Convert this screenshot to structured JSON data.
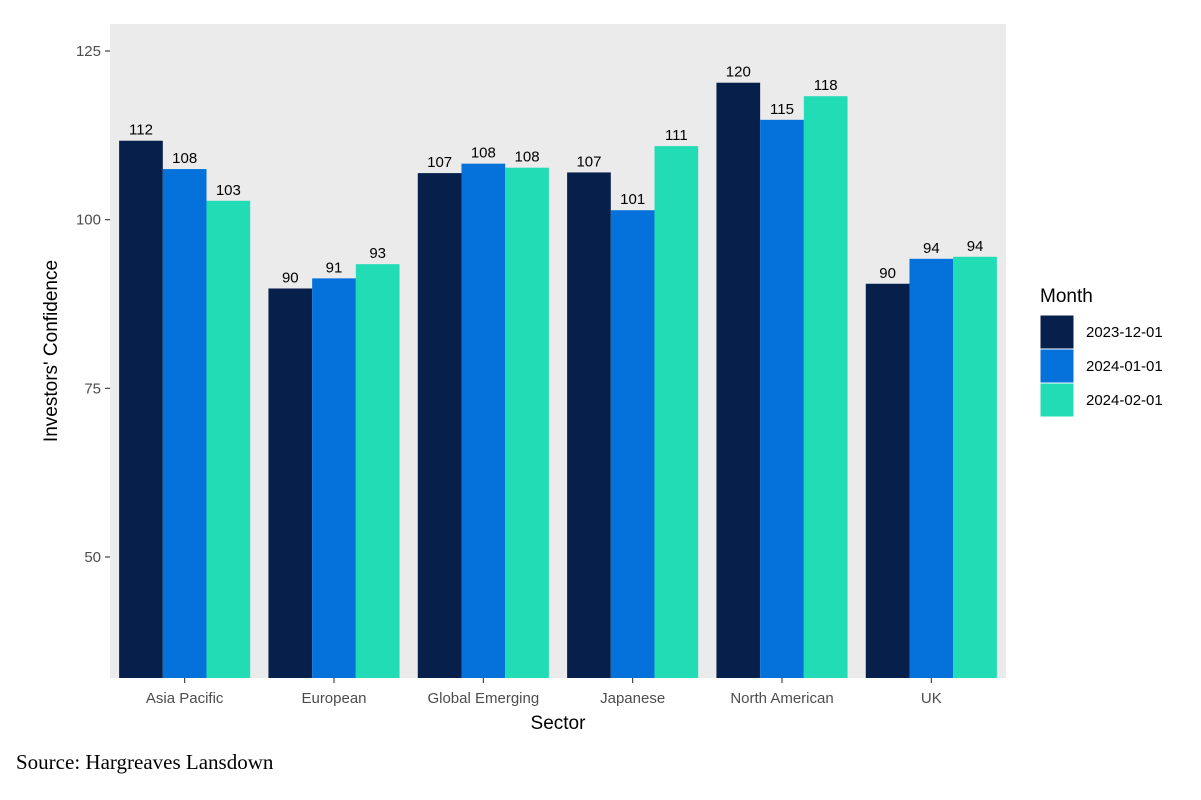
{
  "chart_data": {
    "type": "bar",
    "title": "",
    "xlabel": "Sector",
    "ylabel": "Investors' Confidence",
    "ylim": [
      32.5,
      125
    ],
    "yticks": [
      50,
      75,
      100,
      125
    ],
    "grid": false,
    "legend": {
      "title": "Month",
      "placement": "right"
    },
    "categories": [
      "Asia Pacific",
      "European",
      "Global Emerging",
      "Japanese",
      "North American",
      "UK"
    ],
    "series": [
      {
        "name": "2023-12-01",
        "color": "#071f4b",
        "values": [
          111.7,
          89.8,
          106.9,
          107.0,
          120.3,
          90.5
        ],
        "labels": [
          "112",
          "90",
          "107",
          "107",
          "120",
          "90"
        ]
      },
      {
        "name": "2024-01-01",
        "color": "#0572dc",
        "values": [
          107.5,
          91.3,
          108.3,
          101.4,
          114.8,
          94.2
        ],
        "labels": [
          "108",
          "91",
          "108",
          "101",
          "115",
          "94"
        ]
      },
      {
        "name": "2024-02-01",
        "color": "#22dcb5",
        "values": [
          102.8,
          93.4,
          107.7,
          110.9,
          118.3,
          94.5
        ],
        "labels": [
          "103",
          "93",
          "108",
          "111",
          "118",
          "94"
        ]
      }
    ]
  },
  "source": "Source: Hargreaves Lansdown",
  "colors": {
    "panel_background": "#ebebeb",
    "tick_text": "#4d4d4d"
  }
}
